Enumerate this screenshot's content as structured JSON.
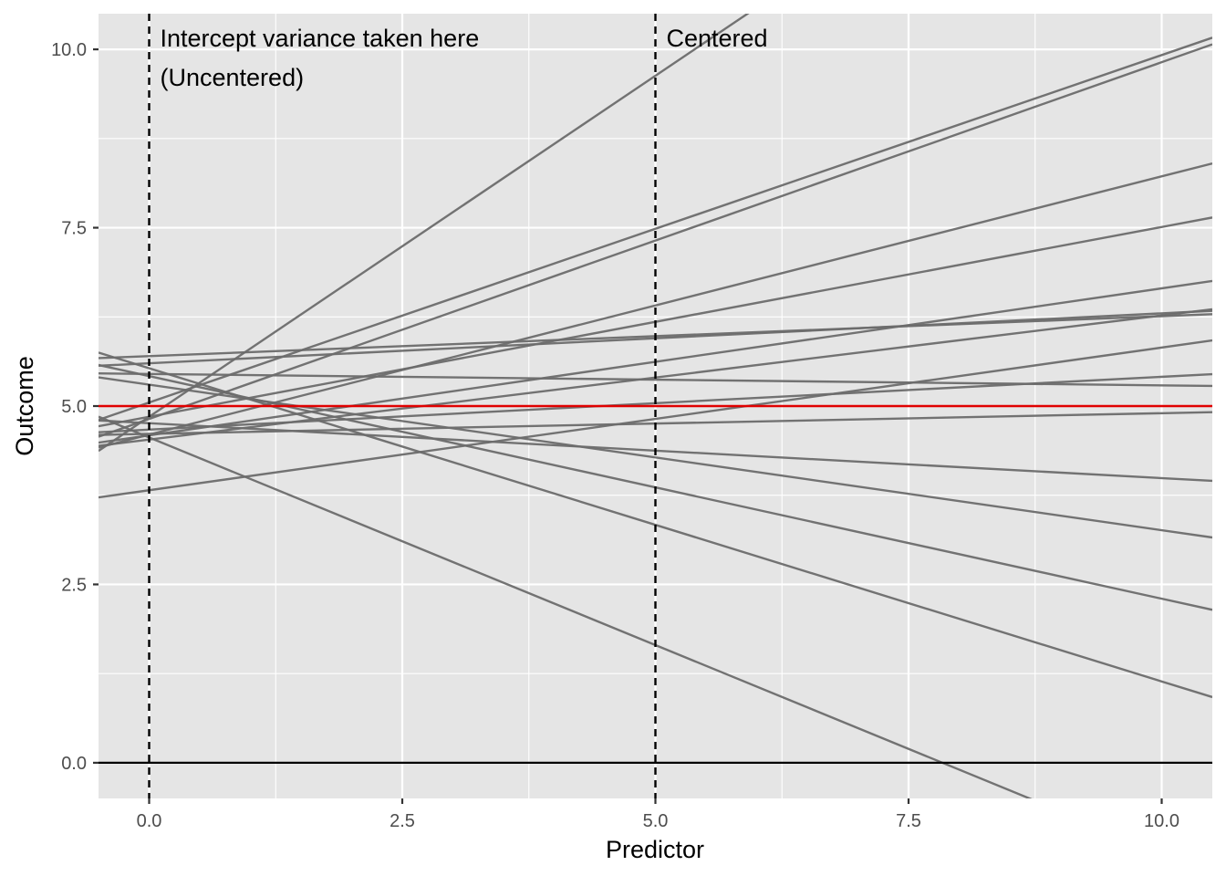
{
  "chart_data": {
    "type": "line",
    "xlabel": "Predictor",
    "ylabel": "Outcome",
    "xlim": [
      -0.5,
      10.5
    ],
    "ylim": [
      -0.5,
      10.5
    ],
    "x_ticks": [
      0.0,
      2.5,
      5.0,
      7.5,
      10.0
    ],
    "x_tick_labels": [
      "0.0",
      "2.5",
      "5.0",
      "7.5",
      "10.0"
    ],
    "y_ticks": [
      0.0,
      2.5,
      5.0,
      7.5,
      10.0
    ],
    "y_tick_labels": [
      "0.0",
      "2.5",
      "5.0",
      "7.5",
      "10.0"
    ],
    "grid": true,
    "panel_background": "#e5e5e5",
    "grid_color": "#ffffff",
    "line_color": "#6b6b6b",
    "mean_line_color": "#e00000",
    "zero_line_color": "#000000",
    "series_lines": [
      {
        "intercept": 4.85,
        "slope": 0.956
      },
      {
        "intercept": 5.05,
        "slope": 0.487
      },
      {
        "intercept": 4.82,
        "slope": 0.5
      },
      {
        "intercept": 4.6,
        "slope": 0.362
      },
      {
        "intercept": 4.85,
        "slope": 0.266
      },
      {
        "intercept": 4.59,
        "slope": 0.206
      },
      {
        "intercept": 5.6,
        "slope": 0.07
      },
      {
        "intercept": 5.7,
        "slope": 0.056
      },
      {
        "intercept": 4.53,
        "slope": 0.174
      },
      {
        "intercept": 3.82,
        "slope": 0.2
      },
      {
        "intercept": 4.67,
        "slope": 0.074
      },
      {
        "intercept": 4.61,
        "slope": 0.029
      },
      {
        "intercept": 5.45,
        "slope": -0.016
      },
      {
        "intercept": 4.76,
        "slope": -0.077
      },
      {
        "intercept": 5.3,
        "slope": -0.204
      },
      {
        "intercept": 5.42,
        "slope": -0.312
      },
      {
        "intercept": 5.53,
        "slope": -0.439
      },
      {
        "intercept": 4.56,
        "slope": -0.582
      }
    ],
    "mean_line": {
      "intercept": 5.0,
      "slope": 0.0
    },
    "reference_hline": 0.0,
    "vlines": [
      0.0,
      5.0
    ],
    "annotations": [
      {
        "x": 0.0,
        "lines": [
          "Intercept variance taken here",
          "(Uncentered)"
        ]
      },
      {
        "x": 5.0,
        "lines": [
          "Centered"
        ]
      }
    ]
  }
}
